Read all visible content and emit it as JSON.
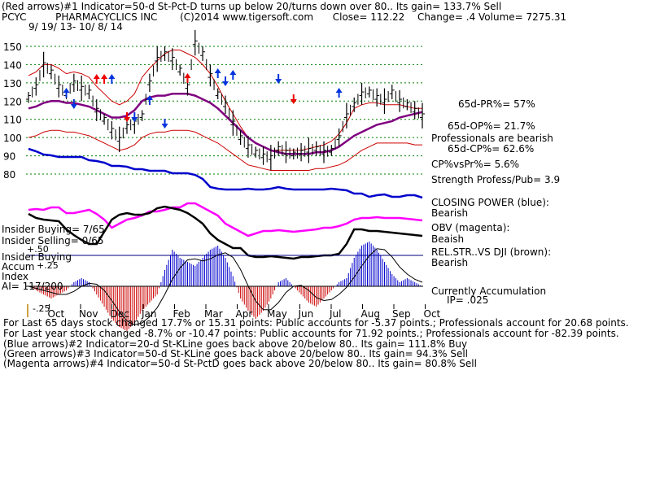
{
  "header": {
    "line1": "(Red arrows)#1 Indicator=50-d St-Pct-D turns up below 20/turns down over 80..  Its gain= 133.7% Sell",
    "ticker": "PCYC",
    "company": "PHARMACYCLICS INC",
    "copyright": "(C)2014 www.tigersoft.com",
    "close": "Close=  112.22",
    "change": "Change= .4",
    "volume": "Volume= 7275.31",
    "date_range": "9/ 19/ 13- 10/ 8/ 14"
  },
  "right_labels": {
    "pr": "65d-PR%= 57%",
    "op": "65d-OP%= 21.7%",
    "prof_bearish": "Professionals are bearish",
    "cp": "65d-CP%= 62.6%",
    "cpvspr": "CP%vsPr%=  5.6%",
    "strength": "Strength Profess/Pub= 3.9",
    "closing_power": "CLOSING POWER (blue):",
    "closing_power_state": "Bearish",
    "obv": "OBV (magenta):",
    "obv_state": "Beaish",
    "relstr": "REL.STR..VS DJI (brown):",
    "relstr_state": "Bearish",
    "accum": "Currently Accumulation",
    "ip": "IP=  .025"
  },
  "left_labels": {
    "insider_buying": "Insider Buying= 7/65",
    "insider_selling": "Insider Selling= 0/65",
    "insider_buying2": "Insider Buying",
    "accum": "Accum",
    "accum_val": "+.25",
    "minus50": "+.50",
    "index": "Index",
    "ai": "AI= 117/200",
    "minus25": "-.25"
  },
  "footer": {
    "line1": "For Last 65 days stock changed  17.7% or  15.31 points:  Public accounts for -5.37 points.;  Professionals account for  20.68 points.",
    "line2": "For Last year stock changed -8.7% or -10.47 points:  Public accounts for  71.92 points.;  Professionals account for -82.39 points.",
    "line3": "(Blue arrows)#2 Indicator=20-d St-KLine goes back above 20/below 80..  Its gain= 111.8% Buy",
    "line4": "(Green arrows)#3 Indicator=50-d St-KLine goes back above 20/below 80..  Its gain= 94.3% Sell",
    "line5": "(Magenta arrows)#4 Indicator=50-d St-PctD goes back above 20/below 80..  Its gain= 80.8% Sell"
  },
  "colors": {
    "price": "#000000",
    "band": "#cc0000",
    "ma": "#800080",
    "closing_power": "#0000cc",
    "obv": "#ff00ff",
    "relstr": "#000000",
    "accum_pos": "#0000cc",
    "accum_neg": "#cc0000",
    "grid": "#008000",
    "red_arrow": "#ee0000",
    "blue_arrow": "#0033dd"
  },
  "chart_data": {
    "type": "line",
    "ylim": [
      80,
      150
    ],
    "yticks": [
      "150",
      "140",
      "130",
      "120",
      "110",
      "100",
      "90",
      "80"
    ],
    "ytick_values": [
      150,
      140,
      130,
      120,
      110,
      100,
      90,
      80
    ],
    "months": [
      "Oct",
      "Nov",
      "Dec",
      "Jan",
      "Feb",
      "Mar",
      "Apr",
      "May",
      "Jun",
      "Jul",
      "Aug",
      "Sep",
      "Oct"
    ],
    "series": [
      {
        "values": [
          122,
          128,
          140,
          136,
          128,
          124,
          130,
          127,
          125,
          115,
          110,
          104,
          99,
          106,
          108,
          112,
          130,
          143,
          146,
          143,
          137,
          128,
          152,
          146,
          134,
          124,
          118,
          108,
          100,
          95,
          92,
          90,
          89,
          94,
          92,
          91,
          92,
          93,
          94,
          92,
          93,
          100,
          112,
          118,
          124,
          125,
          122,
          120,
          125,
          120,
          118,
          115,
          112
        ]
      },
      {
        "values": [
          116,
          117,
          119,
          120,
          120,
          119,
          119,
          118,
          117,
          115,
          113,
          111,
          111,
          112,
          115,
          120,
          122,
          123,
          123,
          124,
          124,
          124,
          123,
          121,
          119,
          116,
          112,
          108,
          104,
          100,
          97,
          95,
          93,
          92,
          91,
          91,
          91,
          91,
          92,
          92,
          93,
          95,
          98,
          101,
          103,
          105,
          107,
          108,
          109,
          111,
          112,
          113,
          114
        ]
      },
      {
        "values": [
          134,
          136,
          140,
          140,
          138,
          135,
          136,
          135,
          133,
          128,
          124,
          120,
          118,
          120,
          124,
          133,
          138,
          142,
          146,
          148,
          148,
          146,
          144,
          140,
          135,
          128,
          120,
          113,
          106,
          100,
          97,
          95,
          93,
          93,
          93,
          93,
          93,
          94,
          95,
          96,
          98,
          102,
          108,
          116,
          118,
          119,
          119,
          118,
          118,
          118,
          117,
          116,
          116
        ]
      },
      {
        "values": [
          100,
          101,
          103,
          104,
          104,
          103,
          103,
          102,
          101,
          99,
          97,
          95,
          93,
          94,
          96,
          100,
          102,
          103,
          103,
          104,
          104,
          104,
          103,
          101,
          99,
          97,
          94,
          91,
          88,
          85,
          84,
          83,
          82,
          82,
          82,
          82,
          82,
          82,
          83,
          83,
          84,
          85,
          87,
          90,
          93,
          95,
          97,
          97,
          97,
          97,
          97,
          96,
          96
        ]
      }
    ],
    "closing_power": [
      183,
      186,
      190,
      191,
      193,
      193,
      193,
      193,
      197,
      198,
      200,
      204,
      204,
      205,
      208,
      208,
      210,
      210,
      210,
      213,
      213,
      213,
      215,
      220,
      230,
      232,
      233,
      233,
      233,
      232,
      233,
      233,
      232,
      230,
      232,
      233,
      233,
      233,
      233,
      233,
      232,
      233,
      234,
      238,
      238,
      242,
      240,
      239,
      242,
      242,
      240,
      240,
      243
    ],
    "obv": [
      258,
      257,
      258,
      255,
      255,
      262,
      262,
      260,
      258,
      263,
      270,
      280,
      275,
      270,
      268,
      265,
      260,
      260,
      258,
      255,
      255,
      250,
      250,
      255,
      260,
      265,
      275,
      280,
      285,
      290,
      287,
      284,
      284,
      283,
      284,
      285,
      284,
      283,
      282,
      280,
      280,
      278,
      275,
      270,
      268,
      268,
      267,
      268,
      268,
      268,
      269,
      270,
      271
    ],
    "relstr": [
      263,
      268,
      270,
      271,
      272,
      282,
      289,
      295,
      300,
      300,
      285,
      270,
      264,
      262,
      264,
      264,
      262,
      256,
      254,
      256,
      258,
      262,
      268,
      275,
      287,
      295,
      300,
      305,
      305,
      314,
      316,
      316,
      315,
      316,
      317,
      318,
      316,
      316,
      315,
      314,
      314,
      312,
      300,
      282,
      282,
      284,
      284,
      285,
      286,
      287,
      288,
      289,
      290
    ],
    "accum": [
      0.0,
      -0.02,
      -0.04,
      -0.06,
      -0.04,
      -0.02,
      0.02,
      0.04,
      0.02,
      -0.04,
      -0.1,
      -0.16,
      -0.2,
      -0.22,
      -0.18,
      -0.12,
      -0.08,
      -0.04,
      0.08,
      0.18,
      0.14,
      0.12,
      0.1,
      0.14,
      0.18,
      0.2,
      0.14,
      0.05,
      -0.06,
      -0.12,
      -0.16,
      -0.12,
      -0.06,
      0.02,
      0.04,
      0.0,
      -0.04,
      -0.08,
      -0.1,
      -0.06,
      -0.02,
      0.02,
      0.04,
      0.14,
      0.2,
      0.22,
      0.18,
      0.12,
      0.06,
      0.02,
      0.04,
      0.02,
      0.0
    ],
    "arrows": [
      {
        "color": "blue",
        "dir": "up",
        "i": 5,
        "y": 108
      },
      {
        "color": "blue",
        "dir": "down",
        "i": 6,
        "y": 134
      },
      {
        "color": "red",
        "dir": "up",
        "i": 9,
        "y": 91
      },
      {
        "color": "red",
        "dir": "up",
        "i": 10,
        "y": 91
      },
      {
        "color": "blue",
        "dir": "up",
        "i": 11,
        "y": 91
      },
      {
        "color": "red",
        "dir": "down",
        "i": 13,
        "y": 150
      },
      {
        "color": "blue",
        "dir": "down",
        "i": 14,
        "y": 150
      },
      {
        "color": "blue",
        "dir": "up",
        "i": 16,
        "y": 117
      },
      {
        "color": "blue",
        "dir": "down",
        "i": 18,
        "y": 158
      },
      {
        "color": "red",
        "dir": "up",
        "i": 21,
        "y": 90
      },
      {
        "color": "blue",
        "dir": "up",
        "i": 25,
        "y": 84
      },
      {
        "color": "blue",
        "dir": "down",
        "i": 26,
        "y": 106
      },
      {
        "color": "blue",
        "dir": "up",
        "i": 27,
        "y": 86
      },
      {
        "color": "blue",
        "dir": "down",
        "i": 33,
        "y": 103
      },
      {
        "color": "red",
        "dir": "down",
        "i": 35,
        "y": 128
      },
      {
        "color": "blue",
        "dir": "up",
        "i": 41,
        "y": 108
      }
    ]
  }
}
